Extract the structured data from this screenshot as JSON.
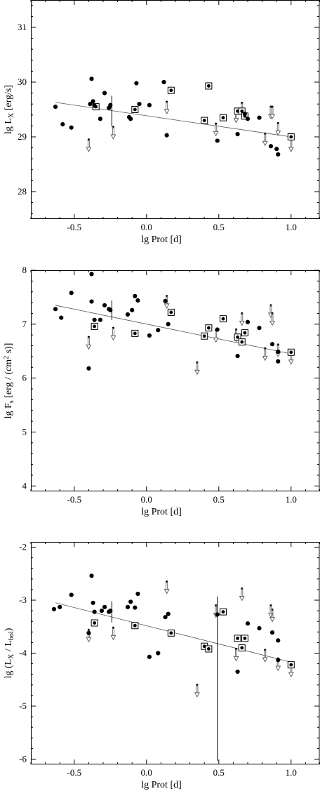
{
  "chart_data": [
    {
      "type": "scatter",
      "xlabel": "lg Prot [d]",
      "ylabel_parts": [
        "lg L",
        "X",
        " [erg/s]"
      ],
      "xlim": [
        -0.8,
        1.2
      ],
      "ylim": [
        27.5,
        31.5
      ],
      "xticks": [
        -0.5,
        0.0,
        0.5,
        1.0
      ],
      "xtick_labels": [
        "-0.5",
        "0.0",
        "0.5",
        "1.0"
      ],
      "yticks": [
        28,
        29,
        30,
        31
      ],
      "ytick_labels": [
        "28",
        "29",
        "30",
        "31"
      ],
      "fit_line": [
        [
          -0.63,
          29.63
        ],
        [
          1.0,
          29.0
        ]
      ],
      "points_dot": [
        [
          -0.63,
          29.55
        ],
        [
          -0.58,
          29.23
        ],
        [
          -0.52,
          29.17
        ],
        [
          -0.39,
          29.6
        ],
        [
          -0.38,
          30.06
        ],
        [
          -0.37,
          29.65
        ],
        [
          -0.36,
          29.57
        ],
        [
          -0.32,
          29.33
        ],
        [
          -0.29,
          29.8
        ],
        [
          -0.26,
          29.53
        ],
        [
          -0.25,
          29.58
        ],
        [
          -0.12,
          29.36
        ],
        [
          -0.11,
          29.33
        ],
        [
          -0.07,
          29.98
        ],
        [
          -0.05,
          29.6
        ],
        [
          0.02,
          29.58
        ],
        [
          0.12,
          30.0
        ],
        [
          0.14,
          29.03
        ],
        [
          0.49,
          28.93
        ],
        [
          0.63,
          29.05
        ],
        [
          0.68,
          29.42
        ],
        [
          0.7,
          29.33
        ],
        [
          0.78,
          29.35
        ],
        [
          0.86,
          28.83
        ],
        [
          0.9,
          28.78
        ],
        [
          0.91,
          28.68
        ]
      ],
      "points_boxed": [
        [
          -0.35,
          29.55
        ],
        [
          -0.08,
          29.5
        ],
        [
          0.17,
          29.85
        ],
        [
          0.4,
          29.3
        ],
        [
          0.43,
          29.93
        ],
        [
          0.53,
          29.35
        ],
        [
          0.63,
          29.47
        ],
        [
          0.66,
          29.47
        ],
        [
          0.68,
          29.38
        ],
        [
          1.0,
          29.0
        ]
      ],
      "upper_limits": [
        [
          -0.4,
          28.95
        ],
        [
          -0.23,
          29.18
        ],
        [
          0.14,
          29.64
        ],
        [
          0.48,
          29.24
        ],
        [
          0.62,
          29.48
        ],
        [
          0.66,
          29.62
        ],
        [
          0.82,
          29.06
        ],
        [
          0.86,
          29.55
        ],
        [
          0.87,
          29.55
        ],
        [
          0.91,
          29.25
        ],
        [
          1.0,
          28.95
        ]
      ],
      "error_bars": [
        [
          -0.24,
          29.47,
          0.28
        ]
      ]
    },
    {
      "type": "scatter",
      "xlabel": "lg Prot [d]",
      "ylabel_parts": [
        "lg F",
        "s",
        " [erg / (cm",
        "2",
        " s)]"
      ],
      "xlim": [
        -0.8,
        1.2
      ],
      "ylim": [
        3.9,
        8.0
      ],
      "xticks": [
        -0.5,
        0.0,
        0.5,
        1.0
      ],
      "xtick_labels": [
        "-0.5",
        "0.0",
        "0.5",
        "1.0"
      ],
      "yticks": [
        4,
        5,
        6,
        7,
        8
      ],
      "ytick_labels": [
        "4",
        "5",
        "6",
        "7",
        "8"
      ],
      "fit_line": [
        [
          -0.63,
          7.35
        ],
        [
          1.0,
          6.45
        ]
      ],
      "points_dot": [
        [
          -0.63,
          7.28
        ],
        [
          -0.59,
          7.12
        ],
        [
          -0.52,
          7.58
        ],
        [
          -0.4,
          6.18
        ],
        [
          -0.38,
          7.93
        ],
        [
          -0.38,
          7.42
        ],
        [
          -0.36,
          7.08
        ],
        [
          -0.32,
          7.08
        ],
        [
          -0.29,
          7.35
        ],
        [
          -0.26,
          7.28
        ],
        [
          -0.25,
          7.26
        ],
        [
          -0.13,
          7.18
        ],
        [
          -0.1,
          7.26
        ],
        [
          -0.08,
          7.52
        ],
        [
          -0.06,
          7.44
        ],
        [
          0.02,
          6.79
        ],
        [
          0.08,
          6.89
        ],
        [
          0.13,
          7.43
        ],
        [
          0.15,
          7.0
        ],
        [
          0.49,
          6.9
        ],
        [
          0.63,
          6.41
        ],
        [
          0.7,
          7.04
        ],
        [
          0.78,
          6.93
        ],
        [
          0.87,
          6.63
        ],
        [
          0.91,
          6.49
        ],
        [
          0.91,
          6.31
        ]
      ],
      "points_boxed": [
        [
          -0.36,
          6.96
        ],
        [
          -0.08,
          6.83
        ],
        [
          0.17,
          7.22
        ],
        [
          0.4,
          6.78
        ],
        [
          0.43,
          6.93
        ],
        [
          0.53,
          7.1
        ],
        [
          0.63,
          6.76
        ],
        [
          0.66,
          6.67
        ],
        [
          0.68,
          6.84
        ],
        [
          1.0,
          6.48
        ]
      ],
      "upper_limits": [
        [
          -0.4,
          6.76
        ],
        [
          -0.23,
          6.93
        ],
        [
          0.14,
          7.52
        ],
        [
          0.35,
          6.29
        ],
        [
          0.48,
          6.89
        ],
        [
          0.62,
          6.9
        ],
        [
          0.66,
          7.2
        ],
        [
          0.82,
          6.55
        ],
        [
          0.86,
          7.35
        ],
        [
          0.87,
          7.2
        ],
        [
          0.91,
          6.62
        ],
        [
          1.0,
          6.48
        ]
      ],
      "error_bars": [
        [
          -0.24,
          7.26,
          0.18
        ]
      ]
    },
    {
      "type": "scatter",
      "xlabel": "lg Prot [d]",
      "ylabel_parts": [
        "lg (L",
        "X",
        " / L",
        "bol",
        ")"
      ],
      "xlim": [
        -0.8,
        1.2
      ],
      "ylim": [
        -6.1,
        -1.9
      ],
      "xticks": [
        -0.5,
        0.0,
        0.5,
        1.0
      ],
      "xtick_labels": [
        "-0.5",
        "0.0",
        "0.5",
        "1.0"
      ],
      "yticks": [
        -6,
        -5,
        -4,
        -3,
        -2
      ],
      "ytick_labels": [
        "-6",
        "-5",
        "-4",
        "-3",
        "-2"
      ],
      "fit_line": [
        [
          -0.63,
          -3.05
        ],
        [
          1.0,
          -4.17
        ]
      ],
      "points_dot": [
        [
          -0.64,
          -3.17
        ],
        [
          -0.6,
          -3.13
        ],
        [
          -0.52,
          -2.9
        ],
        [
          -0.4,
          -3.62
        ],
        [
          -0.38,
          -2.54
        ],
        [
          -0.37,
          -3.05
        ],
        [
          -0.36,
          -3.22
        ],
        [
          -0.31,
          -3.2
        ],
        [
          -0.29,
          -3.13
        ],
        [
          -0.26,
          -3.22
        ],
        [
          -0.25,
          -3.2
        ],
        [
          -0.13,
          -3.13
        ],
        [
          -0.11,
          -3.03
        ],
        [
          -0.08,
          -3.14
        ],
        [
          -0.06,
          -2.88
        ],
        [
          0.02,
          -4.07
        ],
        [
          0.08,
          -4.0
        ],
        [
          0.13,
          -3.32
        ],
        [
          0.15,
          -3.26
        ],
        [
          0.49,
          -3.27
        ],
        [
          0.63,
          -4.35
        ],
        [
          0.7,
          -3.44
        ],
        [
          0.78,
          -3.53
        ],
        [
          0.87,
          -3.61
        ],
        [
          0.91,
          -3.76
        ],
        [
          0.91,
          -4.13
        ]
      ],
      "points_boxed": [
        [
          -0.36,
          -3.43
        ],
        [
          -0.08,
          -3.48
        ],
        [
          0.17,
          -3.62
        ],
        [
          0.4,
          -3.87
        ],
        [
          0.43,
          -3.92
        ],
        [
          0.53,
          -3.22
        ],
        [
          0.63,
          -3.72
        ],
        [
          0.66,
          -3.9
        ],
        [
          0.68,
          -3.72
        ],
        [
          1.0,
          -4.22
        ]
      ],
      "upper_limits": [
        [
          -0.4,
          -3.56
        ],
        [
          -0.23,
          -3.52
        ],
        [
          0.14,
          -2.65
        ],
        [
          0.35,
          -4.6
        ],
        [
          0.48,
          -3.1
        ],
        [
          0.62,
          -3.92
        ],
        [
          0.66,
          -2.78
        ],
        [
          0.82,
          -3.94
        ],
        [
          0.86,
          -3.1
        ],
        [
          0.87,
          -3.18
        ],
        [
          0.91,
          -4.1
        ],
        [
          1.0,
          -4.22
        ]
      ],
      "error_bars": [
        [
          -0.24,
          -3.22,
          0.2
        ],
        [
          0.49,
          -4.48,
          1.55
        ]
      ]
    }
  ]
}
